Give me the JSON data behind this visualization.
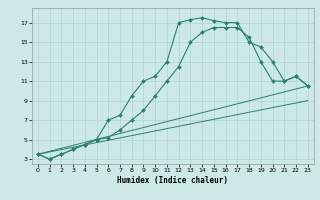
{
  "xlabel": "Humidex (Indice chaleur)",
  "xlim": [
    -0.5,
    23.5
  ],
  "ylim": [
    2.5,
    18.5
  ],
  "yticks": [
    3,
    5,
    7,
    9,
    11,
    13,
    15,
    17
  ],
  "xticks": [
    0,
    1,
    2,
    3,
    4,
    5,
    6,
    7,
    8,
    9,
    10,
    11,
    12,
    13,
    14,
    15,
    16,
    17,
    18,
    19,
    20,
    21,
    22,
    23
  ],
  "bg_color": "#cce9e8",
  "grid_color": "#b0d4d3",
  "line_color": "#2e7d6e",
  "line1_x": [
    0,
    1,
    2,
    3,
    4,
    5,
    6,
    7,
    8,
    9,
    10,
    11,
    12,
    13,
    14,
    15,
    16,
    17,
    18,
    19,
    20,
    21,
    22,
    23
  ],
  "line1_y": [
    3.5,
    3.0,
    3.5,
    4.0,
    4.5,
    5.0,
    7.0,
    7.5,
    9.5,
    11.0,
    11.5,
    13.0,
    17.0,
    17.3,
    17.5,
    17.2,
    17.0,
    17.0,
    15.0,
    14.5,
    13.0,
    11.0,
    11.5,
    10.5
  ],
  "line2_x": [
    0,
    1,
    2,
    3,
    4,
    5,
    6,
    7,
    8,
    9,
    10,
    11,
    12,
    13,
    14,
    15,
    16,
    17,
    18,
    19,
    20,
    21,
    22,
    23
  ],
  "line2_y": [
    3.5,
    3.0,
    3.5,
    4.0,
    4.5,
    5.0,
    5.2,
    6.0,
    7.0,
    8.0,
    9.5,
    11.0,
    12.5,
    15.0,
    16.0,
    16.5,
    16.5,
    16.5,
    15.5,
    13.0,
    11.0,
    11.0,
    11.5,
    10.5
  ],
  "line3_x": [
    0,
    23
  ],
  "line3_y": [
    3.5,
    10.5
  ],
  "line4_x": [
    0,
    23
  ],
  "line4_y": [
    3.5,
    9.0
  ]
}
